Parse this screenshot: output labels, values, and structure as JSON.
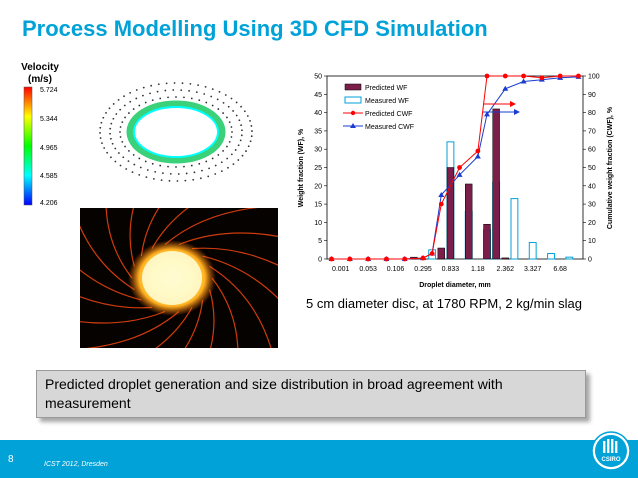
{
  "slide": {
    "title": "Process Modelling Using 3D CFD Simulation",
    "velocity_label_line1": "Velocity",
    "velocity_label_line2": "(m/s)",
    "velocity_ticks": [
      "5.724",
      "5.344",
      "4.965",
      "4.585",
      "4.206"
    ],
    "caption": "5 cm diameter disc, at 1780 RPM, 2 kg/min slag",
    "callout": "Predicted droplet generation and size distribution in broad agreement with measurement",
    "page_number": "8",
    "footer": "ICST 2012, Dresden",
    "logo_text": "CSIRO",
    "colors": {
      "accent": "#00a2d8",
      "predicted_wf": "#7b1f4a",
      "measured_wf": "#00a2d8",
      "predicted_cwf": "#ff0000",
      "measured_cwf": "#1a3cd0"
    }
  },
  "chart_data": {
    "type": "bar",
    "categories": [
      "0.001",
      "0.053",
      "0.106",
      "0.295",
      "0.833",
      "1.18",
      "2.362",
      "3.327",
      "6.68"
    ],
    "xlabel": "Droplet diameter, mm",
    "ylabel": "Weight fraction (WF), %",
    "y2label": "Cumulative weight fraction (CWF), %",
    "ylim": [
      0,
      50
    ],
    "y2lim": [
      0,
      100
    ],
    "yticks": [
      0,
      5,
      10,
      15,
      20,
      25,
      30,
      35,
      40,
      45,
      50
    ],
    "y2ticks": [
      0,
      10,
      20,
      30,
      40,
      50,
      60,
      70,
      80,
      90,
      100
    ],
    "legend_position": "top-left",
    "n_positions": 28,
    "bars_predicted": [
      [
        9,
        0.5
      ],
      [
        12,
        3
      ],
      [
        13,
        25
      ],
      [
        15,
        20.5
      ],
      [
        17,
        9.5
      ],
      [
        18,
        41
      ],
      [
        19,
        0.3
      ]
    ],
    "bars_measured": [
      [
        11,
        2.5
      ],
      [
        13,
        32
      ],
      [
        15,
        13
      ],
      [
        17,
        8
      ],
      [
        18,
        21
      ],
      [
        20,
        16.5
      ],
      [
        22,
        4.5
      ],
      [
        24,
        1.5
      ],
      [
        26,
        0.5
      ]
    ],
    "series": [
      {
        "name": "Predicted WF",
        "kind": "bar"
      },
      {
        "name": "Measured WF",
        "kind": "bar"
      },
      {
        "name": "Predicted CWF",
        "kind": "line",
        "points": [
          [
            0,
            0
          ],
          [
            2,
            0
          ],
          [
            4,
            0
          ],
          [
            6,
            0
          ],
          [
            8,
            0
          ],
          [
            10,
            0.5
          ],
          [
            11,
            3
          ],
          [
            12,
            30
          ],
          [
            14,
            50
          ],
          [
            16,
            59
          ],
          [
            17,
            100
          ],
          [
            19,
            100
          ],
          [
            21,
            100
          ],
          [
            23,
            99
          ],
          [
            25,
            100
          ],
          [
            27,
            100
          ]
        ]
      },
      {
        "name": "Measured CWF",
        "kind": "line",
        "points": [
          [
            0,
            0
          ],
          [
            2,
            0
          ],
          [
            4,
            0
          ],
          [
            6,
            0
          ],
          [
            8,
            0
          ],
          [
            10,
            0.5
          ],
          [
            11,
            3
          ],
          [
            12,
            35
          ],
          [
            14,
            46
          ],
          [
            16,
            56
          ],
          [
            17,
            79
          ],
          [
            19,
            93
          ],
          [
            21,
            97
          ],
          [
            23,
            98
          ],
          [
            25,
            99
          ],
          [
            27,
            99.5
          ]
        ]
      }
    ]
  }
}
